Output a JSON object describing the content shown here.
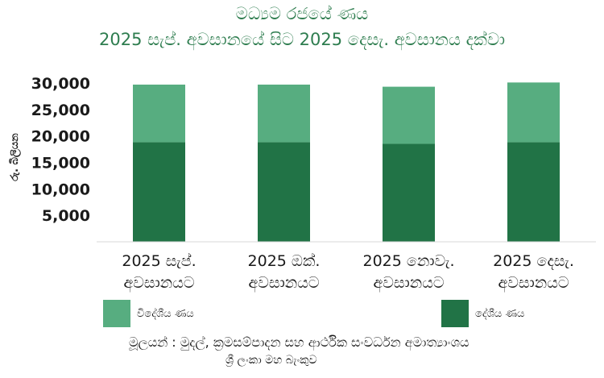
{
  "chart_data": {
    "type": "bar",
    "stacked": true,
    "title": "මධ්‍යම රජයේ ණය",
    "subtitle": "2025 සැප්. අවසානයේ සිට 2025 දෙසැ. අවසානය දක්වා",
    "ylabel": "රු. බිලියන",
    "categories": [
      [
        "2025 සැප්.",
        "අවසානයට"
      ],
      [
        "2025 ඔක්.",
        "අවසානයට"
      ],
      [
        "2025 නොවැ.",
        "අවසානයට"
      ],
      [
        "2025 දෙසැ.",
        "අවසානයට"
      ]
    ],
    "yticks": [
      "5,000",
      "10,000",
      "15,000",
      "20,000",
      "25,000",
      "30,000"
    ],
    "ytick_values": [
      5000,
      10000,
      15000,
      20000,
      25000,
      30000
    ],
    "ylim": [
      0,
      30000
    ],
    "grid": false,
    "series": [
      {
        "name": "දේශීය ණය",
        "values": [
          18800,
          18800,
          18500,
          18800
        ],
        "color": "#217346"
      },
      {
        "name": "විදේශීය ණය",
        "values": [
          10900,
          10900,
          10800,
          11300
        ],
        "color": "#57ad80"
      }
    ],
    "legend_position": "bottom"
  },
  "legend": {
    "foreign_label": "විදේශීය ණය",
    "domestic_label": "දේශීය ණය",
    "foreign_color": "#57ad80",
    "domestic_color": "#217346"
  },
  "source": {
    "line1": "මූලයන් : මුදල්, ක්‍රමසම්පාදන සහ ආර්ථික සංවර්ධන අමාත්‍යාංශය",
    "line2": "ශ්‍රී ලංකා මහ බැංකුව"
  }
}
